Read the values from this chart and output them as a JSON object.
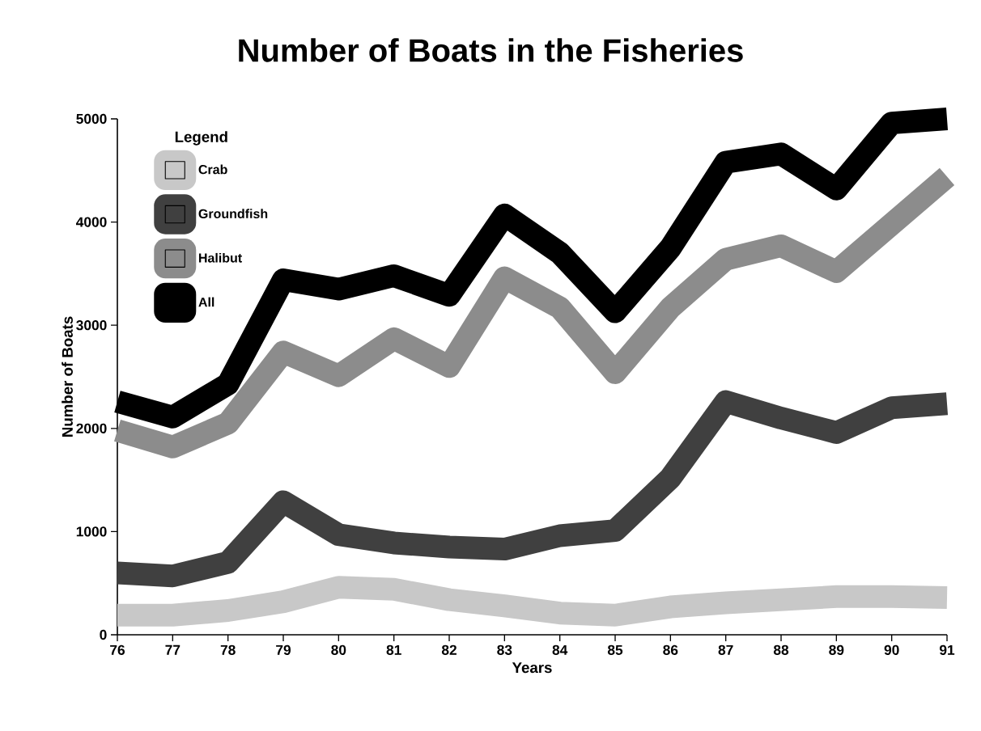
{
  "chart_data": {
    "type": "line",
    "title": "Number of Boats in the Fisheries",
    "xlabel": "Years",
    "ylabel": "Number of Boats",
    "legend_title": "Legend",
    "categories": [
      "76",
      "77",
      "78",
      "79",
      "80",
      "81",
      "82",
      "83",
      "84",
      "85",
      "86",
      "87",
      "88",
      "89",
      "90",
      "91"
    ],
    "series": [
      {
        "name": "Crab",
        "color": "#c8c8c8",
        "values": [
          190,
          190,
          235,
          320,
          460,
          440,
          340,
          280,
          210,
          190,
          270,
          310,
          340,
          370,
          370,
          360
        ]
      },
      {
        "name": "Groundfish",
        "color": "#404040",
        "values": [
          600,
          570,
          700,
          1290,
          970,
          890,
          850,
          830,
          960,
          1010,
          1520,
          2260,
          2100,
          1960,
          2200,
          2240
        ]
      },
      {
        "name": "Halibut",
        "color": "#8c8c8c",
        "values": [
          1980,
          1820,
          2050,
          2740,
          2510,
          2870,
          2600,
          3460,
          3170,
          2540,
          3170,
          3640,
          3770,
          3520,
          3980,
          4440
        ]
      },
      {
        "name": "All",
        "color": "#000000",
        "values": [
          2260,
          2110,
          2430,
          3440,
          3350,
          3480,
          3290,
          4070,
          3700,
          3130,
          3750,
          4580,
          4660,
          4320,
          4960,
          5000
        ]
      }
    ],
    "ylim": [
      0,
      5000
    ],
    "yticks": [
      0,
      1000,
      2000,
      3000,
      4000,
      5000
    ],
    "grid": false,
    "legend": "top left",
    "marker": "none",
    "line_style": "solid"
  }
}
